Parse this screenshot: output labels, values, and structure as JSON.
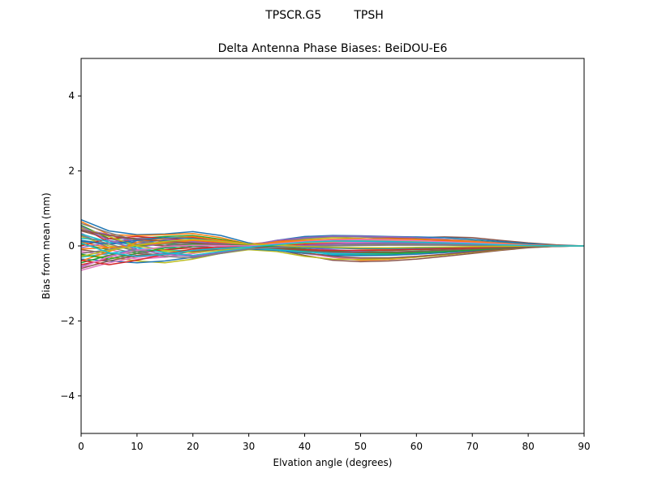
{
  "figure": {
    "suptitle": "TPSCR.G5         TPSH"
  },
  "chart_data": {
    "type": "line",
    "title": "Delta Antenna Phase Biases: BeiDOU-E6",
    "xlabel": "Elvation angle (degrees)",
    "ylabel": "Bias from mean (mm)",
    "xlim": [
      0,
      90
    ],
    "ylim": [
      -5,
      5
    ],
    "xticks": [
      0,
      10,
      20,
      30,
      40,
      50,
      60,
      70,
      80,
      90
    ],
    "xtick_labels": [
      "0",
      "10",
      "20",
      "30",
      "40",
      "50",
      "60",
      "70",
      "80",
      "90"
    ],
    "yticks": [
      -4,
      -2,
      0,
      2,
      4
    ],
    "ytick_labels": [
      "−4",
      "−2",
      "0",
      "2",
      "4"
    ],
    "grid": false,
    "legend": "none",
    "x": [
      0,
      5,
      10,
      15,
      20,
      25,
      30,
      35,
      40,
      45,
      50,
      55,
      60,
      65,
      70,
      75,
      80,
      85,
      90
    ],
    "colors": [
      "#1f77b4",
      "#ff7f0e",
      "#2ca02c",
      "#d62728",
      "#9467bd",
      "#8c564b",
      "#e377c2",
      "#7f7f7f",
      "#bcbd22",
      "#17becf"
    ],
    "series": [
      {
        "values": [
          0.7,
          0.4,
          0.3,
          0.32,
          0.38,
          0.28,
          0.08,
          -0.02,
          -0.1,
          -0.15,
          -0.14,
          -0.12,
          -0.1,
          -0.08,
          -0.05,
          -0.02,
          0.0,
          0.01,
          0.0
        ]
      },
      {
        "values": [
          0.65,
          0.3,
          0.28,
          0.3,
          0.33,
          0.22,
          0.05,
          -0.05,
          -0.18,
          -0.3,
          -0.38,
          -0.36,
          -0.3,
          -0.24,
          -0.16,
          -0.08,
          -0.02,
          0.01,
          0.0
        ]
      },
      {
        "values": [
          0.55,
          0.2,
          0.2,
          0.25,
          0.28,
          0.18,
          0.05,
          0.1,
          0.2,
          0.25,
          0.24,
          0.22,
          0.2,
          0.18,
          0.14,
          0.09,
          0.04,
          0.01,
          0.0
        ]
      },
      {
        "values": [
          0.5,
          0.1,
          0.15,
          0.2,
          0.22,
          0.15,
          0.03,
          0.12,
          0.22,
          0.27,
          0.26,
          0.22,
          0.18,
          0.14,
          0.1,
          0.06,
          0.03,
          0.01,
          0.0
        ]
      },
      {
        "values": [
          0.45,
          0.3,
          0.1,
          0.05,
          0.0,
          -0.05,
          -0.08,
          -0.05,
          -0.12,
          -0.18,
          -0.2,
          -0.19,
          -0.16,
          -0.12,
          -0.08,
          -0.04,
          -0.01,
          0.0,
          0.0
        ]
      },
      {
        "values": [
          0.4,
          0.2,
          0.05,
          0.0,
          0.05,
          0.05,
          -0.05,
          0.05,
          0.1,
          0.15,
          0.18,
          0.2,
          0.22,
          0.24,
          0.22,
          0.15,
          0.08,
          0.03,
          0.0
        ]
      },
      {
        "values": [
          0.35,
          -0.1,
          -0.25,
          -0.3,
          -0.2,
          -0.1,
          -0.05,
          -0.1,
          -0.2,
          -0.3,
          -0.34,
          -0.33,
          -0.28,
          -0.22,
          -0.15,
          -0.08,
          -0.03,
          0.0,
          0.0
        ]
      },
      {
        "values": [
          0.3,
          -0.05,
          -0.2,
          -0.25,
          -0.15,
          -0.08,
          -0.04,
          0.0,
          0.05,
          0.08,
          0.1,
          0.1,
          0.09,
          0.07,
          0.05,
          0.03,
          0.01,
          0.0,
          0.0
        ]
      },
      {
        "values": [
          0.25,
          0.0,
          -0.1,
          -0.15,
          -0.1,
          -0.05,
          -0.03,
          0.1,
          0.18,
          0.22,
          0.2,
          0.16,
          0.12,
          0.08,
          0.05,
          0.03,
          0.01,
          0.0,
          0.0
        ]
      },
      {
        "values": [
          0.2,
          0.15,
          0.0,
          -0.1,
          -0.15,
          -0.1,
          -0.06,
          -0.08,
          -0.15,
          -0.22,
          -0.25,
          -0.24,
          -0.2,
          -0.16,
          -0.11,
          -0.06,
          -0.02,
          0.0,
          0.0
        ]
      },
      {
        "values": [
          0.15,
          0.05,
          0.1,
          0.15,
          0.1,
          0.05,
          0.0,
          0.15,
          0.25,
          0.28,
          0.27,
          0.25,
          0.24,
          0.22,
          0.18,
          0.12,
          0.06,
          0.02,
          0.0
        ]
      },
      {
        "values": [
          0.1,
          -0.05,
          0.05,
          0.1,
          0.12,
          0.08,
          0.02,
          0.05,
          0.0,
          -0.05,
          -0.08,
          -0.09,
          -0.08,
          -0.06,
          -0.04,
          -0.02,
          -0.01,
          0.0,
          0.0
        ]
      },
      {
        "values": [
          0.05,
          -0.1,
          0.0,
          0.05,
          0.08,
          0.05,
          0.0,
          -0.05,
          -0.1,
          -0.12,
          -0.13,
          -0.12,
          -0.1,
          -0.08,
          -0.05,
          -0.03,
          -0.01,
          0.0,
          0.0
        ]
      },
      {
        "values": [
          0.0,
          0.2,
          0.25,
          0.2,
          0.15,
          0.08,
          0.03,
          0.08,
          0.12,
          0.14,
          0.15,
          0.14,
          0.12,
          0.1,
          0.07,
          0.04,
          0.02,
          0.0,
          0.0
        ]
      },
      {
        "values": [
          -0.05,
          0.1,
          0.2,
          0.18,
          0.12,
          0.05,
          0.0,
          0.0,
          -0.05,
          -0.1,
          -0.15,
          -0.18,
          -0.18,
          -0.15,
          -0.11,
          -0.07,
          -0.03,
          -0.01,
          0.0
        ]
      },
      {
        "values": [
          -0.1,
          -0.2,
          -0.3,
          -0.2,
          -0.1,
          -0.05,
          -0.02,
          -0.1,
          -0.25,
          -0.38,
          -0.42,
          -0.4,
          -0.35,
          -0.28,
          -0.2,
          -0.12,
          -0.05,
          -0.01,
          0.0
        ]
      },
      {
        "values": [
          -0.15,
          -0.25,
          -0.35,
          -0.3,
          -0.2,
          -0.1,
          -0.05,
          -0.02,
          0.05,
          0.1,
          0.12,
          0.12,
          0.1,
          0.08,
          0.05,
          0.03,
          0.01,
          0.0,
          0.0
        ]
      },
      {
        "values": [
          -0.2,
          -0.1,
          0.05,
          0.1,
          0.05,
          0.0,
          -0.05,
          0.1,
          0.2,
          0.25,
          0.24,
          0.2,
          0.15,
          0.1,
          0.06,
          0.03,
          0.01,
          0.0,
          0.0
        ]
      },
      {
        "values": [
          -0.25,
          -0.3,
          -0.4,
          -0.45,
          -0.35,
          -0.2,
          -0.1,
          -0.15,
          -0.28,
          -0.35,
          -0.36,
          -0.34,
          -0.3,
          -0.24,
          -0.17,
          -0.1,
          -0.04,
          -0.01,
          0.0
        ]
      },
      {
        "values": [
          -0.3,
          -0.2,
          -0.1,
          -0.05,
          -0.05,
          -0.03,
          -0.02,
          0.05,
          0.1,
          0.12,
          0.12,
          0.1,
          0.08,
          0.06,
          0.04,
          0.02,
          0.01,
          0.0,
          0.0
        ]
      },
      {
        "values": [
          -0.35,
          -0.4,
          -0.45,
          -0.4,
          -0.3,
          -0.15,
          -0.08,
          -0.12,
          -0.2,
          -0.25,
          -0.26,
          -0.25,
          -0.22,
          -0.18,
          -0.13,
          -0.08,
          -0.03,
          -0.01,
          0.0
        ]
      },
      {
        "values": [
          -0.4,
          -0.15,
          0.1,
          0.2,
          0.25,
          0.15,
          0.05,
          0.12,
          0.15,
          0.18,
          0.18,
          0.17,
          0.15,
          0.12,
          0.09,
          0.05,
          0.02,
          0.0,
          0.0
        ]
      },
      {
        "values": [
          -0.45,
          -0.25,
          -0.15,
          -0.1,
          0.0,
          0.02,
          0.0,
          -0.05,
          -0.15,
          -0.2,
          -0.22,
          -0.21,
          -0.18,
          -0.14,
          -0.1,
          -0.06,
          -0.02,
          0.0,
          0.0
        ]
      },
      {
        "values": [
          -0.5,
          -0.35,
          -0.2,
          -0.1,
          -0.05,
          -0.03,
          -0.02,
          0.02,
          0.05,
          0.06,
          0.06,
          0.05,
          0.04,
          0.03,
          0.02,
          0.01,
          0.0,
          0.0,
          0.0
        ]
      },
      {
        "values": [
          -0.55,
          -0.3,
          -0.05,
          0.08,
          0.1,
          0.06,
          0.02,
          0.15,
          0.22,
          0.26,
          0.26,
          0.24,
          0.22,
          0.18,
          0.13,
          0.08,
          0.03,
          0.01,
          0.0
        ]
      },
      {
        "values": [
          -0.6,
          -0.4,
          -0.25,
          -0.2,
          -0.15,
          -0.08,
          -0.04,
          -0.08,
          -0.18,
          -0.28,
          -0.32,
          -0.32,
          -0.28,
          -0.22,
          -0.16,
          -0.09,
          -0.04,
          -0.01,
          0.0
        ]
      },
      {
        "values": [
          -0.65,
          -0.45,
          -0.3,
          -0.25,
          -0.1,
          -0.02,
          0.0,
          0.05,
          0.08,
          0.1,
          0.09,
          0.08,
          0.06,
          0.04,
          0.03,
          0.02,
          0.01,
          0.0,
          0.0
        ]
      },
      {
        "values": [
          0.6,
          0.35,
          0.15,
          0.05,
          -0.05,
          -0.08,
          -0.06,
          -0.02,
          0.0,
          0.02,
          0.04,
          0.05,
          0.05,
          0.04,
          0.03,
          0.02,
          0.01,
          0.0,
          0.0
        ]
      },
      {
        "values": [
          0.48,
          0.25,
          0.0,
          -0.12,
          -0.18,
          -0.12,
          -0.05,
          0.02,
          0.08,
          0.12,
          0.14,
          0.14,
          0.12,
          0.1,
          0.07,
          0.04,
          0.02,
          0.0,
          0.0
        ]
      },
      {
        "values": [
          0.32,
          0.1,
          -0.05,
          -0.18,
          -0.25,
          -0.15,
          -0.06,
          -0.1,
          -0.16,
          -0.2,
          -0.21,
          -0.2,
          -0.17,
          -0.13,
          -0.09,
          -0.05,
          -0.02,
          0.0,
          0.0
        ]
      },
      {
        "values": [
          0.12,
          0.05,
          0.15,
          0.22,
          0.2,
          0.12,
          0.04,
          0.0,
          -0.04,
          -0.06,
          -0.07,
          -0.07,
          -0.06,
          -0.05,
          -0.03,
          -0.02,
          -0.01,
          0.0,
          0.0
        ]
      },
      {
        "values": [
          -0.08,
          -0.05,
          0.02,
          0.08,
          0.15,
          0.1,
          0.04,
          0.08,
          0.14,
          0.18,
          0.19,
          0.19,
          0.18,
          0.16,
          0.12,
          0.07,
          0.03,
          0.01,
          0.0
        ]
      },
      {
        "values": [
          -0.22,
          -0.35,
          -0.2,
          -0.05,
          0.05,
          0.04,
          0.01,
          -0.02,
          -0.08,
          -0.14,
          -0.18,
          -0.19,
          -0.18,
          -0.15,
          -0.11,
          -0.06,
          -0.02,
          0.0,
          0.0
        ]
      },
      {
        "values": [
          -0.38,
          -0.5,
          -0.38,
          -0.22,
          -0.08,
          -0.04,
          -0.02,
          -0.06,
          -0.1,
          -0.12,
          -0.12,
          -0.11,
          -0.09,
          -0.07,
          -0.05,
          -0.03,
          -0.01,
          0.0,
          0.0
        ]
      },
      {
        "values": [
          0.52,
          0.15,
          -0.1,
          -0.22,
          -0.28,
          -0.18,
          -0.08,
          -0.03,
          0.02,
          0.05,
          0.07,
          0.08,
          0.08,
          0.07,
          0.05,
          0.03,
          0.01,
          0.0,
          0.0
        ]
      },
      {
        "values": [
          0.42,
          0.28,
          0.18,
          0.12,
          0.08,
          0.03,
          -0.02,
          -0.06,
          -0.12,
          -0.16,
          -0.17,
          -0.16,
          -0.14,
          -0.11,
          -0.08,
          -0.05,
          -0.02,
          0.0,
          0.0
        ]
      },
      {
        "values": [
          -0.58,
          -0.28,
          -0.12,
          -0.02,
          0.02,
          0.01,
          0.0,
          0.06,
          0.12,
          0.16,
          0.17,
          0.16,
          0.14,
          0.11,
          0.08,
          0.05,
          0.02,
          0.0,
          0.0
        ]
      },
      {
        "values": [
          0.28,
          0.05,
          -0.15,
          -0.28,
          -0.32,
          -0.2,
          -0.08,
          -0.04,
          -0.02,
          0.0,
          0.01,
          0.02,
          0.02,
          0.02,
          0.01,
          0.01,
          0.0,
          0.0,
          0.0
        ]
      },
      {
        "values": [
          -0.28,
          -0.12,
          0.02,
          0.12,
          0.18,
          0.12,
          0.05,
          0.02,
          -0.02,
          -0.04,
          -0.05,
          -0.05,
          -0.04,
          -0.03,
          -0.02,
          -0.01,
          0.0,
          0.0,
          0.0
        ]
      },
      {
        "values": [
          0.08,
          -0.18,
          -0.28,
          -0.22,
          -0.12,
          -0.06,
          -0.03,
          0.04,
          0.1,
          0.13,
          0.13,
          0.12,
          0.1,
          0.08,
          0.06,
          0.03,
          0.01,
          0.0,
          0.0
        ]
      }
    ]
  }
}
